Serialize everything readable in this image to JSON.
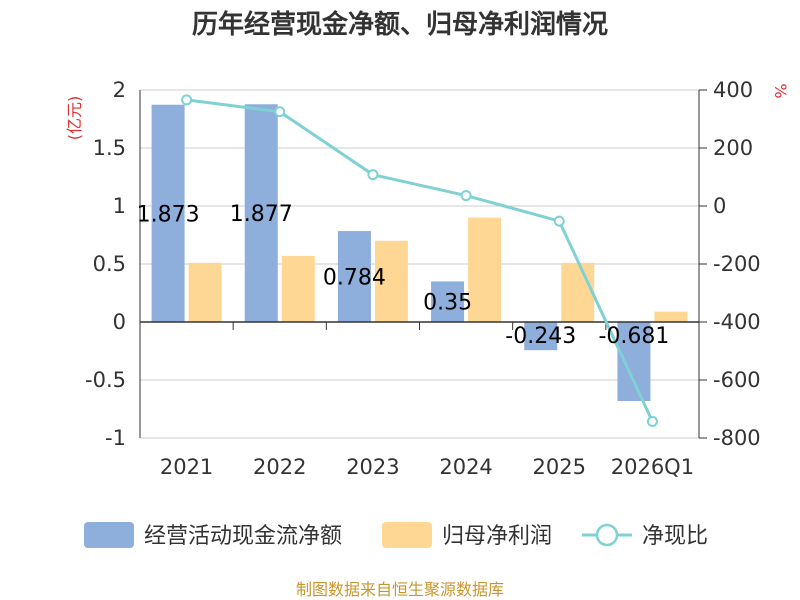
{
  "chart_data": {
    "type": "bar",
    "title": "历年经营现金净额、归母净利润情况",
    "categories": [
      "2021",
      "2022",
      "2023",
      "2024",
      "2025",
      "2026Q1"
    ],
    "series": [
      {
        "name": "经营活动现金流净额",
        "type": "bar",
        "axis": "left",
        "values": [
          1.873,
          1.877,
          0.784,
          0.35,
          -0.243,
          -0.681
        ],
        "labels": [
          "1.873",
          "1.877",
          "0.784",
          "0.35",
          "-0.243",
          "-0.681"
        ],
        "color": "#8eaedb"
      },
      {
        "name": "归母净利润",
        "type": "bar",
        "axis": "left",
        "values": [
          0.51,
          0.57,
          0.7,
          0.9,
          0.51,
          0.09
        ],
        "color": "#ffd794"
      },
      {
        "name": "净现比",
        "type": "line",
        "axis": "right",
        "values": [
          366,
          325,
          108,
          36,
          -52,
          -743
        ],
        "color": "#7fd1d3"
      }
    ],
    "left_axis": {
      "unit": "(亿元)",
      "ylim": [
        -1,
        2
      ],
      "ticks": [
        "-1",
        "-0.5",
        "0",
        "0.5",
        "1",
        "1.5",
        "2"
      ]
    },
    "right_axis": {
      "unit": "%",
      "ylim": [
        -800,
        400
      ],
      "ticks": [
        "-800",
        "-600",
        "-400",
        "-200",
        "0",
        "200",
        "400"
      ]
    },
    "legend_position": "bottom",
    "grid": true
  },
  "source": "制图数据来自恒生聚源数据库"
}
